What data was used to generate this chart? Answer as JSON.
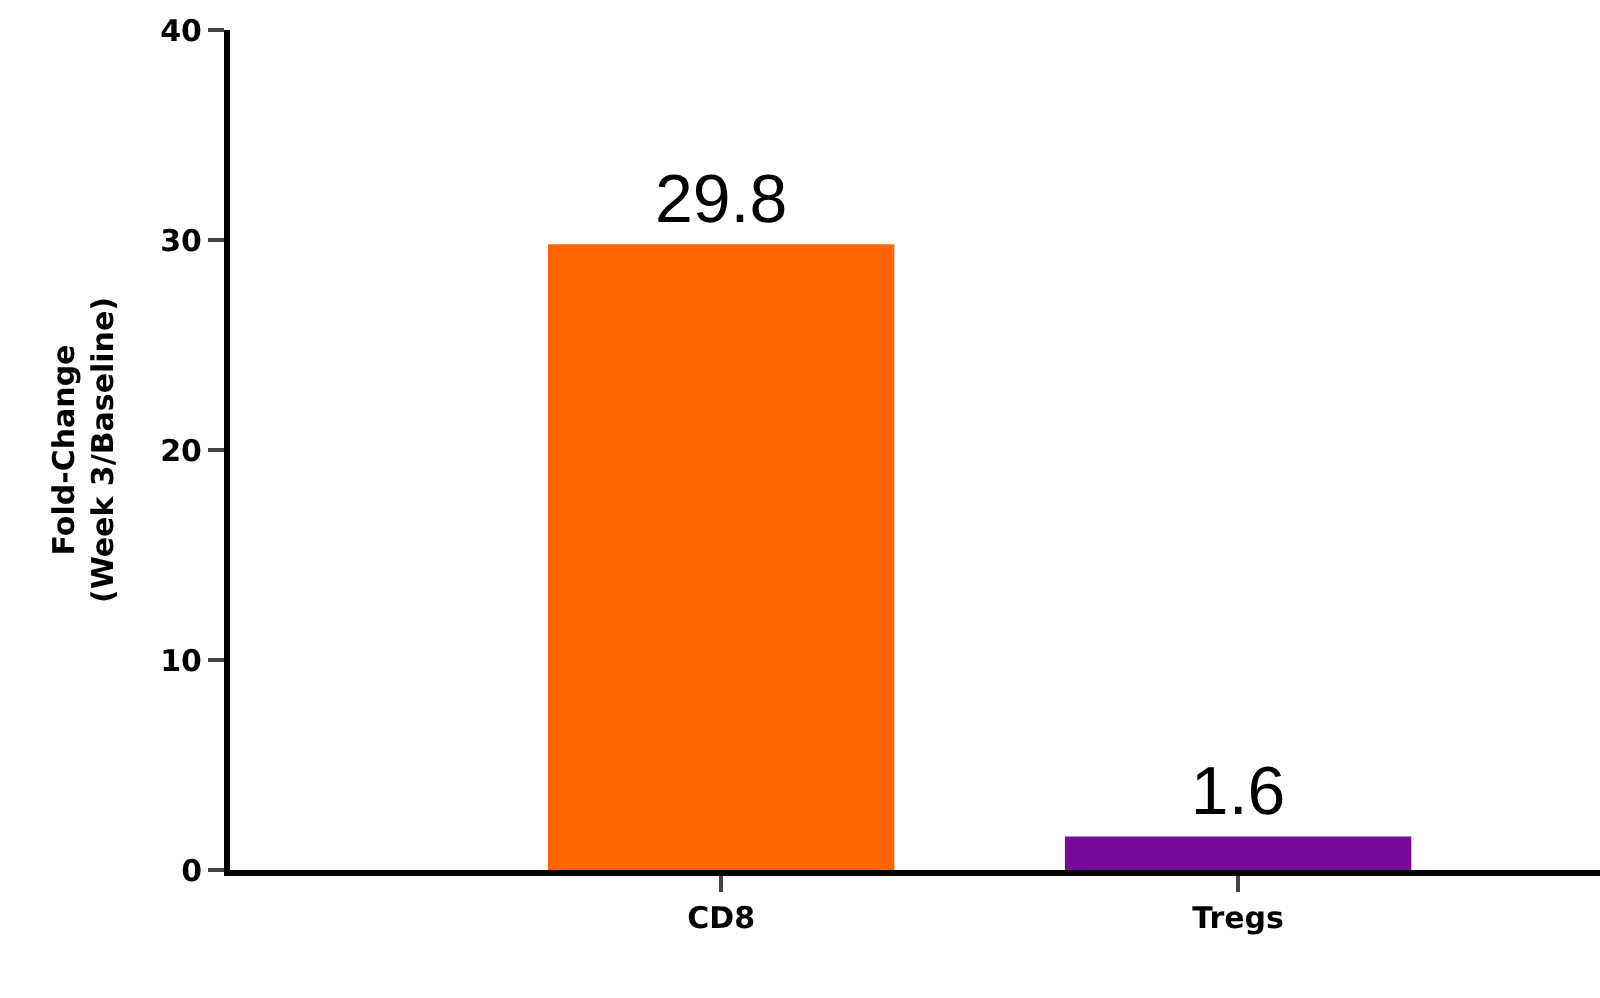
{
  "chart_data": {
    "type": "bar",
    "ylabel": "Fold-Change\n(Week 3/Baseline)",
    "categories": [
      "CD8",
      "Tregs"
    ],
    "values": [
      29.8,
      1.6
    ],
    "colors": [
      "#ff6600",
      "#770a99"
    ],
    "ylim": [
      0,
      40
    ],
    "yticks": [
      0,
      10,
      20,
      30,
      40
    ],
    "data_labels": true
  }
}
